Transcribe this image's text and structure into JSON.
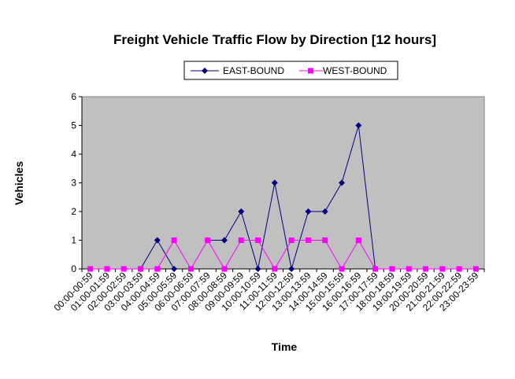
{
  "chart_data": {
    "type": "line",
    "title": "Freight Vehicle Traffic Flow by Direction [12 hours]",
    "xlabel": "Time",
    "ylabel": "Vehicles",
    "ylim": [
      0,
      6
    ],
    "yticks": [
      0,
      1,
      2,
      3,
      4,
      5,
      6
    ],
    "grid": false,
    "legend_position": "top",
    "plot_background": "#c0c0c0",
    "categories": [
      "00:00-00:59",
      "01:00-01:59",
      "02:00-02:59",
      "03:00-03:59",
      "04:00-04:59",
      "05:00-05:59",
      "06:00-06:59",
      "07:00-07:59",
      "08:00-08:59",
      "09:00-09:59",
      "10:00-10:59",
      "11:00-11:59",
      "12:00-12:59",
      "13:00-13:59",
      "14:00-14:59",
      "15:00-15:59",
      "16:00-16:59",
      "17:00-17:59",
      "18:00-18:59",
      "19:00-19:59",
      "20:00-20:59",
      "21:00-21:59",
      "22:00-22:59",
      "23:00-23:59"
    ],
    "series": [
      {
        "name": "EAST-BOUND",
        "color": "#000080",
        "marker": "diamond",
        "values": [
          null,
          null,
          null,
          0,
          1,
          0,
          null,
          1,
          1,
          2,
          0,
          3,
          0,
          2,
          2,
          3,
          5,
          0,
          null,
          null,
          null,
          null,
          null,
          null
        ]
      },
      {
        "name": "WEST-BOUND",
        "color": "#ff00ff",
        "marker": "square",
        "values": [
          0,
          0,
          0,
          0,
          0,
          1,
          0,
          1,
          0,
          1,
          1,
          0,
          1,
          1,
          1,
          0,
          1,
          0,
          0,
          0,
          0,
          0,
          0,
          0
        ]
      }
    ]
  }
}
